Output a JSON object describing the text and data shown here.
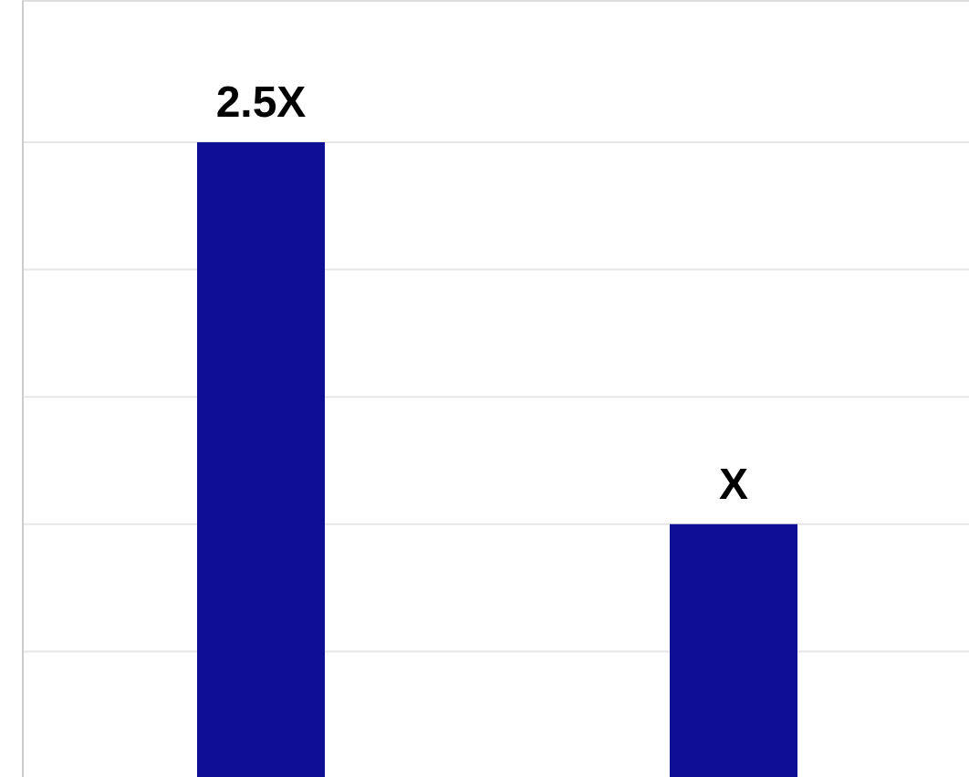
{
  "chart_data": {
    "type": "bar",
    "categories": [
      null,
      null
    ],
    "values": [
      2.5,
      1
    ],
    "color": "#0f0f96",
    "value_labels": [
      "2.5X",
      "X"
    ],
    "grid": "y",
    "tick_labels": false
  }
}
